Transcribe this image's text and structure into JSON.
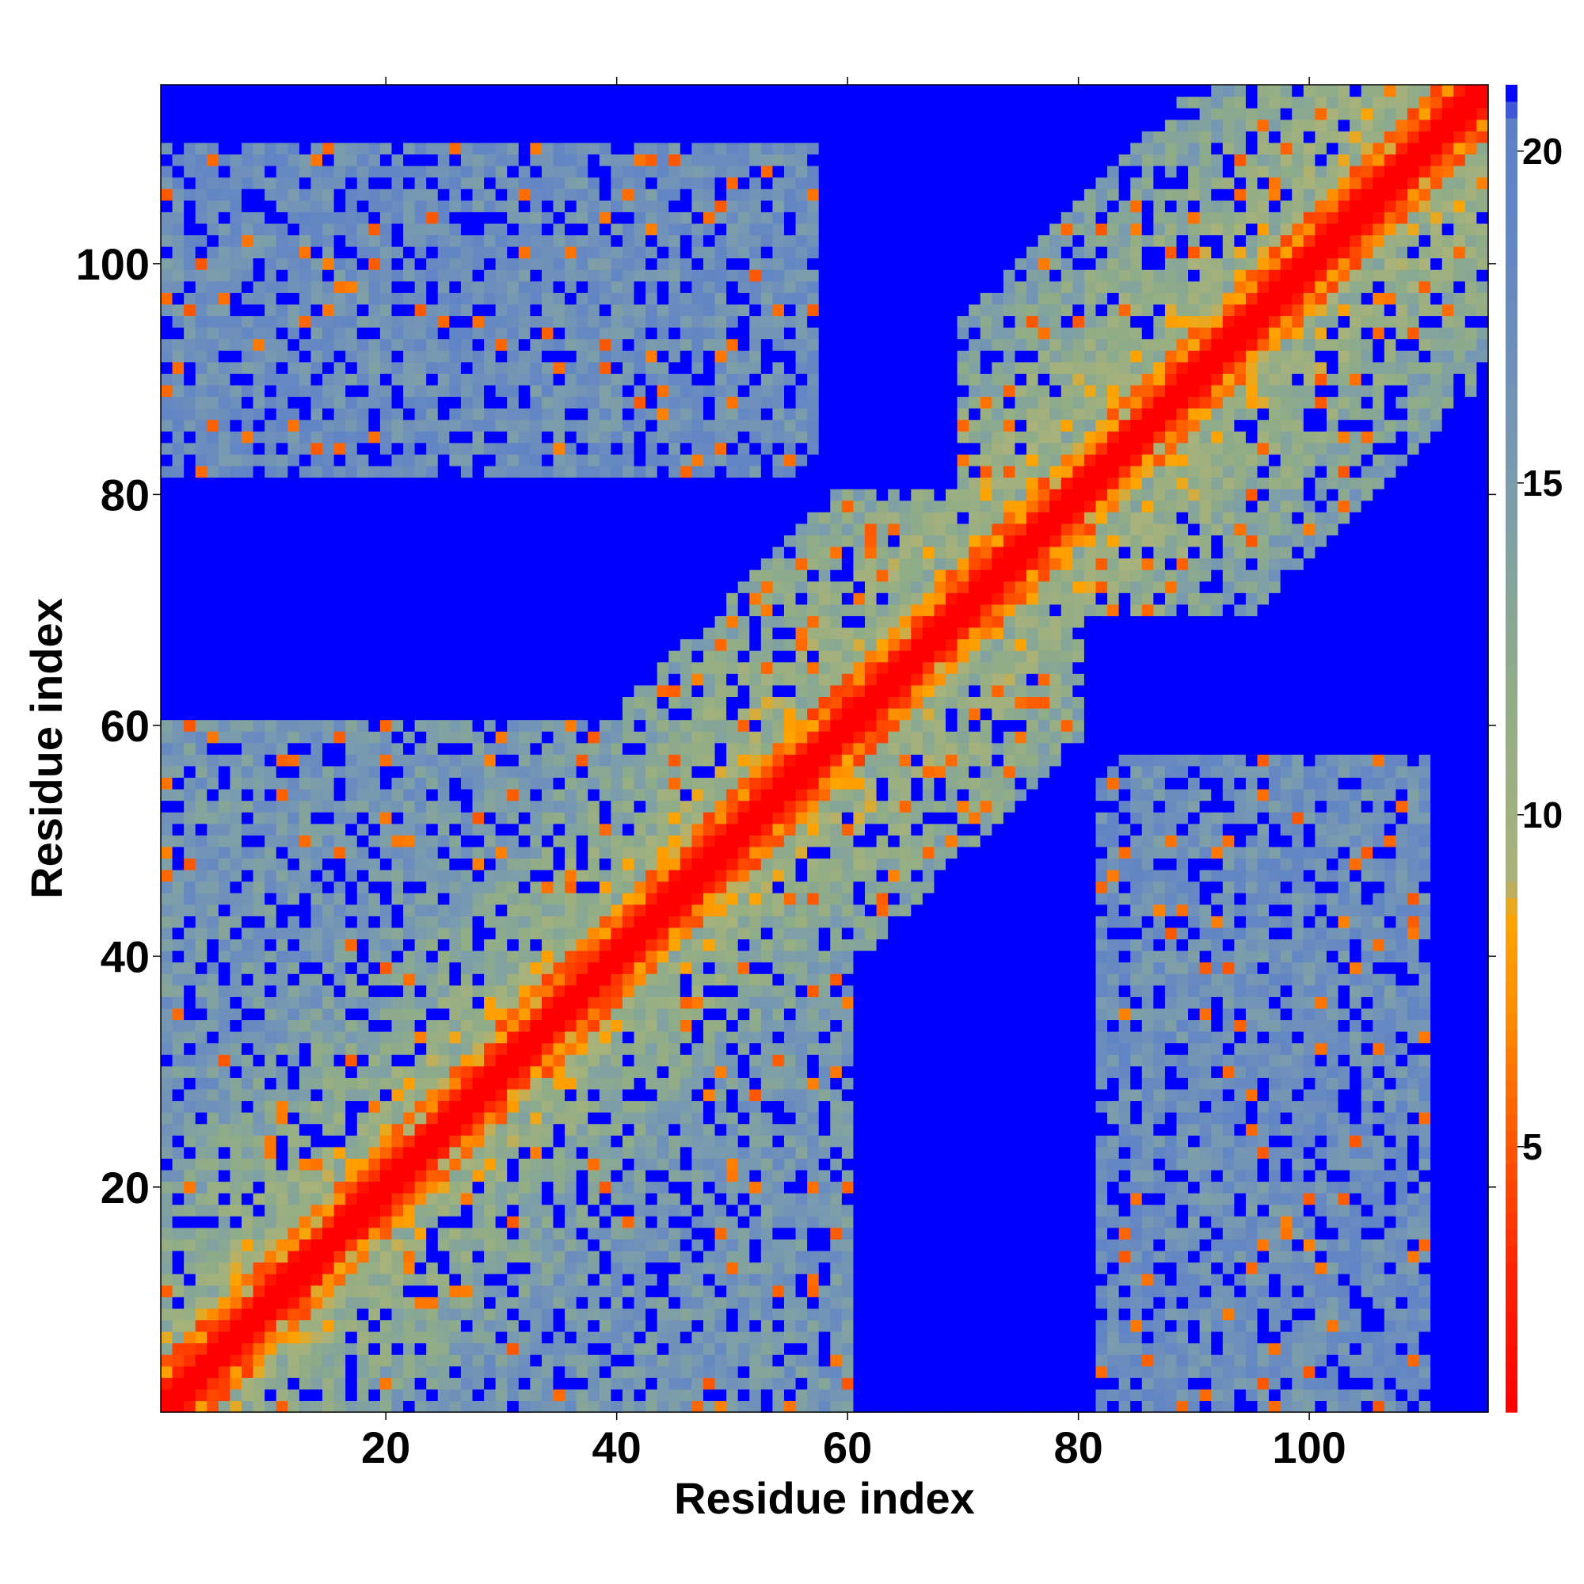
{
  "chart_data": {
    "type": "heatmap",
    "title": "",
    "xlabel": "Residue index",
    "ylabel": "Residue index",
    "n_residues": 115,
    "xlim": [
      1,
      115
    ],
    "ylim": [
      1,
      115
    ],
    "x_ticks": [
      20,
      40,
      60,
      80,
      100
    ],
    "y_ticks": [
      20,
      40,
      60,
      80,
      100
    ],
    "colorbar": {
      "range": [
        1,
        21
      ],
      "ticks": [
        5,
        10,
        15,
        20
      ],
      "colors": [
        "#ff0000",
        "#ff3000",
        "#ff6000",
        "#ff8c00",
        "#ffa500",
        "#9fb07f",
        "#8aa88a",
        "#6a8fc0",
        "#0000ff"
      ]
    },
    "background_value": 21,
    "features": [
      {
        "description": "diagonal band",
        "value_near_diagonal": 1
      },
      {
        "region": "x 1-57, y 1-60",
        "typical_value": 16
      },
      {
        "region": "x 55-80, y 40-75",
        "typical_value": 17
      },
      {
        "region": "x 70-115, y 80-115",
        "typical_value": 15
      },
      {
        "region": "x 1-23, y 90-103",
        "typical_value": 17
      },
      {
        "region": "x 28-57, y 85-110",
        "typical_value": 17
      },
      {
        "region": "x 82-110, y 1-57",
        "typical_value": 17
      }
    ]
  }
}
